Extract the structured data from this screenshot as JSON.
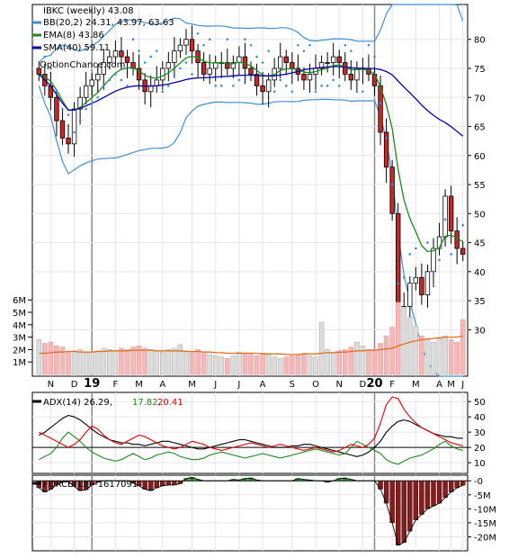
{
  "colors": {
    "up": "#ffffff",
    "down": "#c62828",
    "bb": "#3b8fd6",
    "sar": "#3b8fd6",
    "ema": "#1a8a1a",
    "sma": "#0000aa",
    "vol_up": "#dcdcdc",
    "vol_down": "#f4b8b8",
    "vol_ma": "#e07020",
    "adx": "#000000",
    "plus_di": "#1a8a1a",
    "minus_di": "#e00000",
    "force_pos": "#1a8a1a",
    "force_neg": "#8b1a1a"
  },
  "chart_data": [
    {
      "type": "candlestick",
      "panel": "price",
      "title_ticker": "IBKC (weekly) 43.08",
      "legend": [
        {
          "name": "BB(20,2) 24.31, 43.97, 63.63",
          "color": "#3b8fd6"
        },
        {
          "name": "EMA(8) 43.86",
          "color": "#1a8a1a"
        },
        {
          "name": "SMA(40) 59.11",
          "color": "#0000aa"
        }
      ],
      "watermark": "OptionChance.com",
      "x_labels": [
        "N",
        "D",
        "19",
        "F",
        "M",
        "A",
        "M",
        "J",
        "J",
        "A",
        "S",
        "O",
        "N",
        "D",
        "20",
        "F",
        "M",
        "A",
        "M",
        "J"
      ],
      "y_ticks": [
        30,
        35,
        40,
        45,
        50,
        55,
        60,
        65,
        70,
        75,
        80
      ],
      "ylim": [
        22,
        86
      ],
      "closes": [
        74,
        72,
        70,
        66,
        63,
        62,
        68,
        70,
        72,
        73,
        74,
        76,
        77,
        78,
        77,
        76,
        75,
        73,
        71,
        72,
        73,
        75,
        76,
        78,
        79,
        80,
        78,
        76,
        74,
        75,
        76,
        76,
        75,
        76,
        77,
        75,
        74,
        72,
        71,
        73,
        75,
        77,
        76,
        75,
        74,
        73,
        74,
        75,
        76,
        76,
        77,
        76,
        74,
        73,
        75,
        75,
        74,
        72,
        64,
        58,
        50,
        33,
        34,
        38,
        39,
        36,
        40,
        44,
        46,
        53,
        47,
        44,
        43
      ],
      "volume": {
        "y_ticks": [
          "1M",
          "2M",
          "3M",
          "4M",
          "5M",
          "6M"
        ],
        "values": [
          2.8,
          2.5,
          2.6,
          2.3,
          2.2,
          1.8,
          1.9,
          2.0,
          1.7,
          1.8,
          1.9,
          2.1,
          2.0,
          1.9,
          2.1,
          2.0,
          2.2,
          2.3,
          2.1,
          2.0,
          1.9,
          1.8,
          2.0,
          2.1,
          2.4,
          1.9,
          1.8,
          2.0,
          1.7,
          1.6,
          1.5,
          1.4,
          1.3,
          1.5,
          1.8,
          1.7,
          1.6,
          1.5,
          1.7,
          1.6,
          1.4,
          1.3,
          1.4,
          1.5,
          1.6,
          1.7,
          1.5,
          1.4,
          4.2,
          2.0,
          1.8,
          1.9,
          2.0,
          2.2,
          2.6,
          2.3,
          2.0,
          1.9,
          2.5,
          3.1,
          3.8,
          5.8,
          5.4,
          4.6,
          3.9,
          3.1,
          2.8,
          2.6,
          2.9,
          3.1,
          2.8,
          2.6,
          4.4
        ],
        "ma_values": [
          1.7,
          1.7,
          1.75,
          1.8,
          1.8,
          1.85,
          1.85,
          1.8,
          1.8,
          1.8,
          1.85,
          1.85,
          1.9,
          1.9,
          1.9,
          1.9,
          1.95,
          1.95,
          1.95,
          1.95,
          1.9,
          1.9,
          1.9,
          1.9,
          1.9,
          1.85,
          1.85,
          1.85,
          1.8,
          1.8,
          1.75,
          1.75,
          1.7,
          1.7,
          1.7,
          1.7,
          1.7,
          1.7,
          1.65,
          1.65,
          1.65,
          1.65,
          1.6,
          1.6,
          1.6,
          1.65,
          1.65,
          1.65,
          1.7,
          1.75,
          1.75,
          1.8,
          1.8,
          1.85,
          1.9,
          1.9,
          1.95,
          1.95,
          2.0,
          2.05,
          2.1,
          2.3,
          2.45,
          2.6,
          2.7,
          2.8,
          2.85,
          2.9,
          2.95,
          3.0,
          3.0,
          3.0,
          3.1
        ]
      }
    },
    {
      "type": "line",
      "panel": "adx",
      "legend": [
        {
          "label": "ADX(14) 26.29,",
          "color": "#000000"
        },
        {
          "label": "17.82,",
          "color": "#1a8a1a"
        },
        {
          "label": "20.41",
          "color": "#e00000"
        }
      ],
      "y_ticks": [
        10,
        20,
        30,
        40,
        50
      ],
      "ylim": [
        3,
        56
      ],
      "series": [
        {
          "name": "ADX",
          "values": [
            28,
            30,
            33,
            36,
            39,
            41,
            40,
            38,
            35,
            32,
            29,
            27,
            25,
            24,
            23,
            23,
            22,
            22,
            21,
            22,
            23,
            24,
            24,
            23,
            22,
            21,
            20,
            19,
            19,
            20,
            21,
            22,
            23,
            24,
            25,
            25,
            24,
            23,
            22,
            21,
            20,
            20,
            20,
            21,
            21,
            22,
            22,
            21,
            20,
            19,
            18,
            17,
            16,
            15,
            14,
            15,
            17,
            20,
            24,
            30,
            34,
            37,
            38,
            37,
            35,
            33,
            31,
            29,
            28,
            27,
            27,
            26,
            26
          ]
        },
        {
          "name": "+DI",
          "values": [
            12,
            14,
            16,
            20,
            26,
            30,
            27,
            24,
            20,
            17,
            15,
            13,
            12,
            11,
            12,
            14,
            16,
            14,
            12,
            13,
            15,
            16,
            17,
            16,
            14,
            13,
            12,
            12,
            13,
            15,
            16,
            17,
            16,
            15,
            14,
            13,
            14,
            15,
            16,
            15,
            14,
            13,
            14,
            15,
            16,
            17,
            18,
            19,
            18,
            17,
            16,
            15,
            16,
            20,
            24,
            22,
            20,
            18,
            16,
            12,
            10,
            9,
            11,
            13,
            14,
            15,
            17,
            19,
            22,
            24,
            21,
            19,
            18
          ]
        },
        {
          "name": "-DI",
          "values": [
            30,
            28,
            26,
            24,
            22,
            20,
            22,
            25,
            30,
            34,
            32,
            28,
            25,
            23,
            22,
            24,
            26,
            28,
            27,
            25,
            23,
            21,
            20,
            19,
            20,
            22,
            24,
            23,
            22,
            20,
            19,
            18,
            19,
            20,
            21,
            22,
            23,
            22,
            21,
            20,
            21,
            22,
            21,
            20,
            19,
            18,
            19,
            20,
            19,
            18,
            17,
            18,
            20,
            22,
            21,
            20,
            22,
            26,
            36,
            48,
            53,
            52,
            45,
            40,
            36,
            33,
            31,
            29,
            27,
            25,
            23,
            22,
            21
          ]
        }
      ]
    },
    {
      "type": "bar",
      "panel": "force",
      "legend": [
        {
          "label": "FORCE(13) -1617091",
          "color": "#000000"
        }
      ],
      "y_ticks": [
        "-0",
        "-5M",
        "-10M",
        "-15M",
        "-20M"
      ],
      "ylim": [
        -25,
        2
      ],
      "values": [
        -2.5,
        -4,
        -3,
        -1.5,
        -0.5,
        -0.3,
        -2,
        -3.5,
        -3.2,
        -1.5,
        -0.5,
        0,
        0,
        0,
        0,
        0,
        -0.8,
        -1.8,
        -3,
        -3.5,
        -2.5,
        -1.8,
        -1.5,
        -1.5,
        -1,
        0.8,
        1.2,
        0.5,
        0,
        0,
        0,
        0,
        0,
        0.5,
        0.3,
        0.8,
        1,
        0.3,
        0,
        0,
        0,
        0,
        0,
        0,
        0.8,
        0.5,
        0.3,
        0,
        0,
        -0.5,
        0,
        0.8,
        1,
        0.5,
        0,
        0,
        0,
        0,
        -3,
        -8,
        -15,
        -23,
        -22,
        -18,
        -14,
        -12,
        -10,
        -9,
        -8,
        -6,
        -4,
        -2.5,
        -1.6
      ]
    }
  ]
}
